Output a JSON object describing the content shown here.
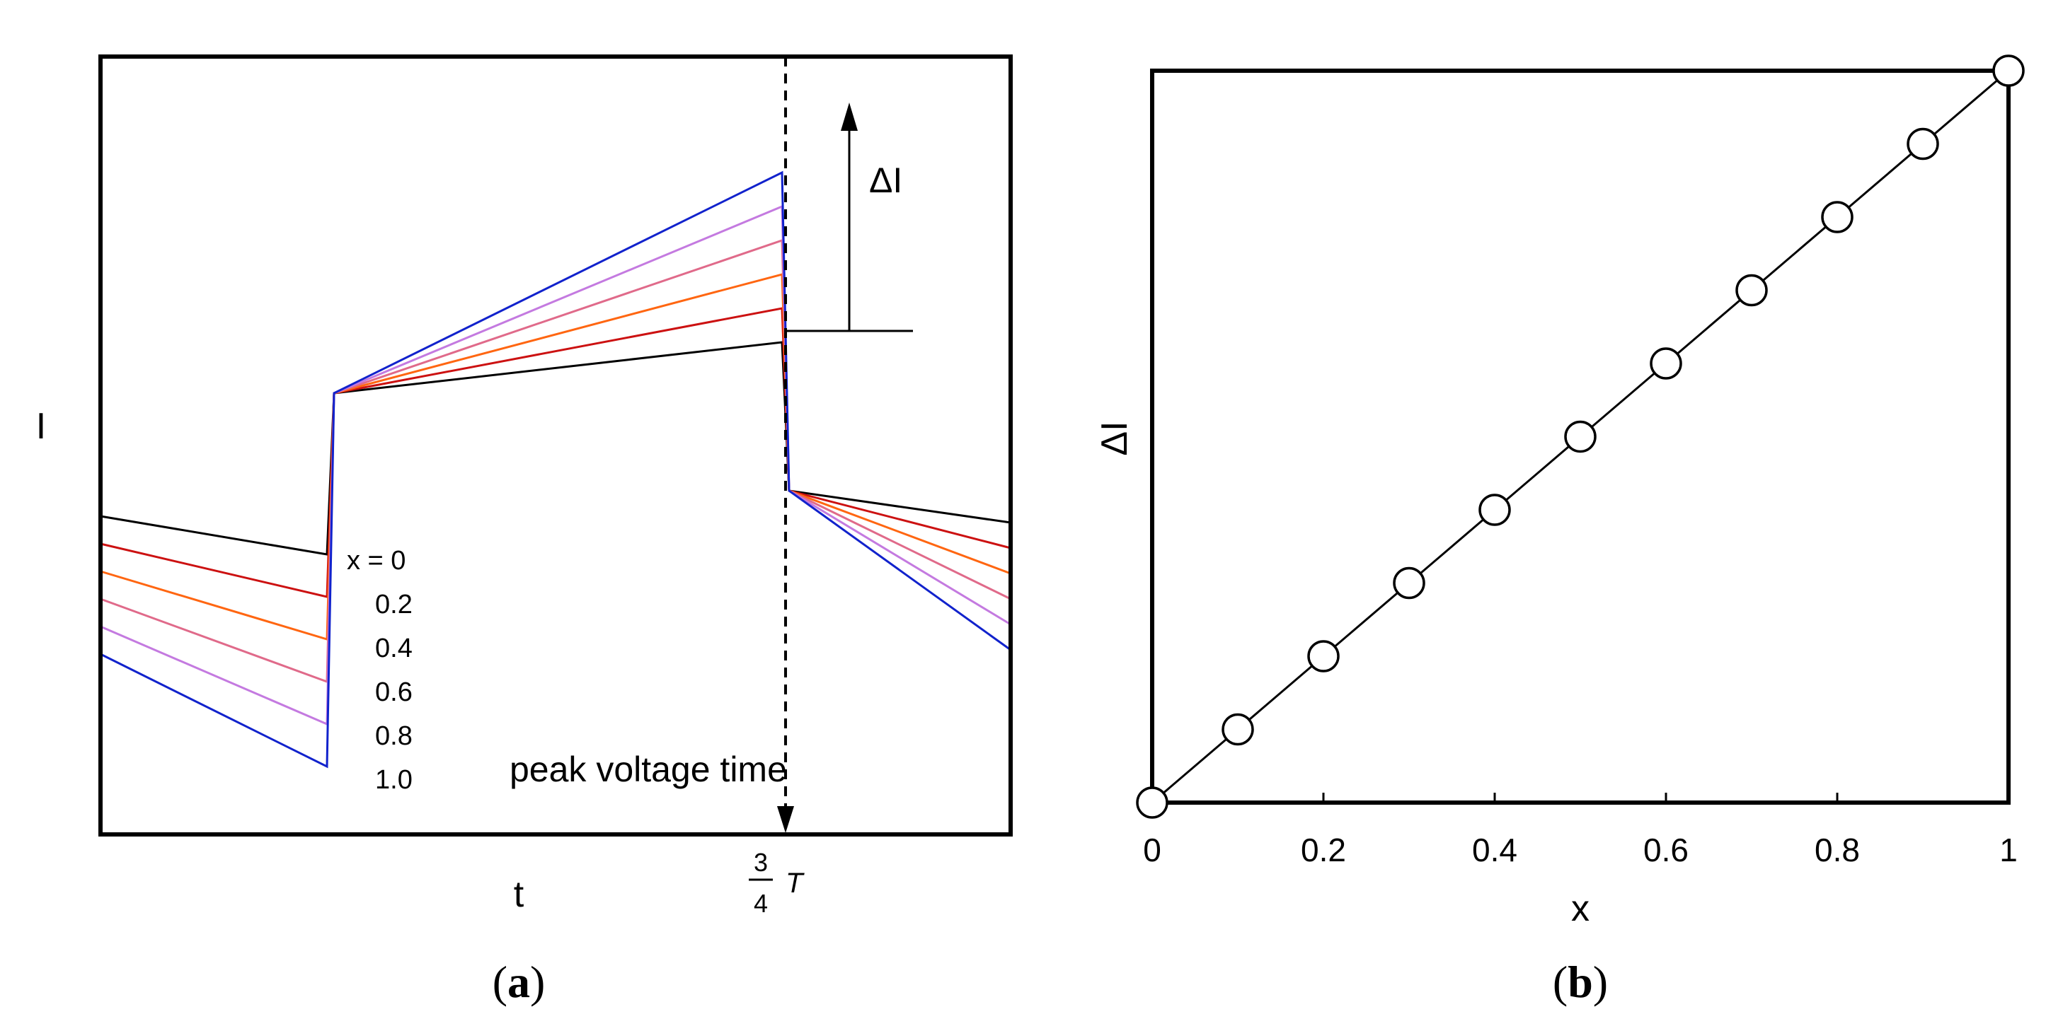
{
  "chart_data": [
    {
      "panel_label": "(a)",
      "panel_label_letter": "a",
      "type": "line",
      "title": "",
      "xlabel": "t",
      "ylabel": "I",
      "x_marker_label": {
        "num": "3",
        "den": "4",
        "sym": "T"
      },
      "annotation_peak": "peak voltage time",
      "annotation_delta": "ΔI",
      "legend_title": "x = 0",
      "series": [
        {
          "name": "0",
          "label": "x = 0",
          "color": "#000000",
          "values": [
            -0.4,
            -0.58,
            0.18,
            0.42,
            -0.28,
            -0.43
          ]
        },
        {
          "name": "0.2",
          "label": "0.2",
          "color": "#cc1111",
          "values": [
            -0.53,
            -0.78,
            0.18,
            0.58,
            -0.28,
            -0.55
          ]
        },
        {
          "name": "0.4",
          "label": "0.4",
          "color": "#ff6611",
          "values": [
            -0.66,
            -0.98,
            0.18,
            0.74,
            -0.28,
            -0.67
          ]
        },
        {
          "name": "0.6",
          "label": "0.6",
          "color": "#e06a8a",
          "values": [
            -0.79,
            -1.18,
            0.18,
            0.9,
            -0.28,
            -0.79
          ]
        },
        {
          "name": "0.8",
          "label": "0.8",
          "color": "#c47ae0",
          "values": [
            -0.92,
            -1.38,
            0.18,
            1.06,
            -0.28,
            -0.91
          ]
        },
        {
          "name": "1.0",
          "label": "1.0",
          "color": "#1122cc",
          "values": [
            -1.05,
            -1.58,
            0.18,
            1.22,
            -0.28,
            -1.03
          ]
        }
      ]
    },
    {
      "panel_label": "(b)",
      "panel_label_letter": "b",
      "type": "line",
      "title": "",
      "xlabel": "x",
      "ylabel": "ΔI",
      "x": [
        0,
        0.1,
        0.2,
        0.3,
        0.4,
        0.5,
        0.6,
        0.7,
        0.8,
        0.9,
        1.0
      ],
      "values": [
        0,
        0.1,
        0.2,
        0.3,
        0.4,
        0.5,
        0.6,
        0.7,
        0.8,
        0.9,
        1.0
      ],
      "xlim": [
        0,
        1
      ],
      "ylim": [
        0,
        1
      ],
      "xticks": [
        "0",
        "0.2",
        "0.4",
        "0.6",
        "0.8",
        "1"
      ],
      "marker": "open-circle",
      "line_color": "#000000"
    }
  ]
}
